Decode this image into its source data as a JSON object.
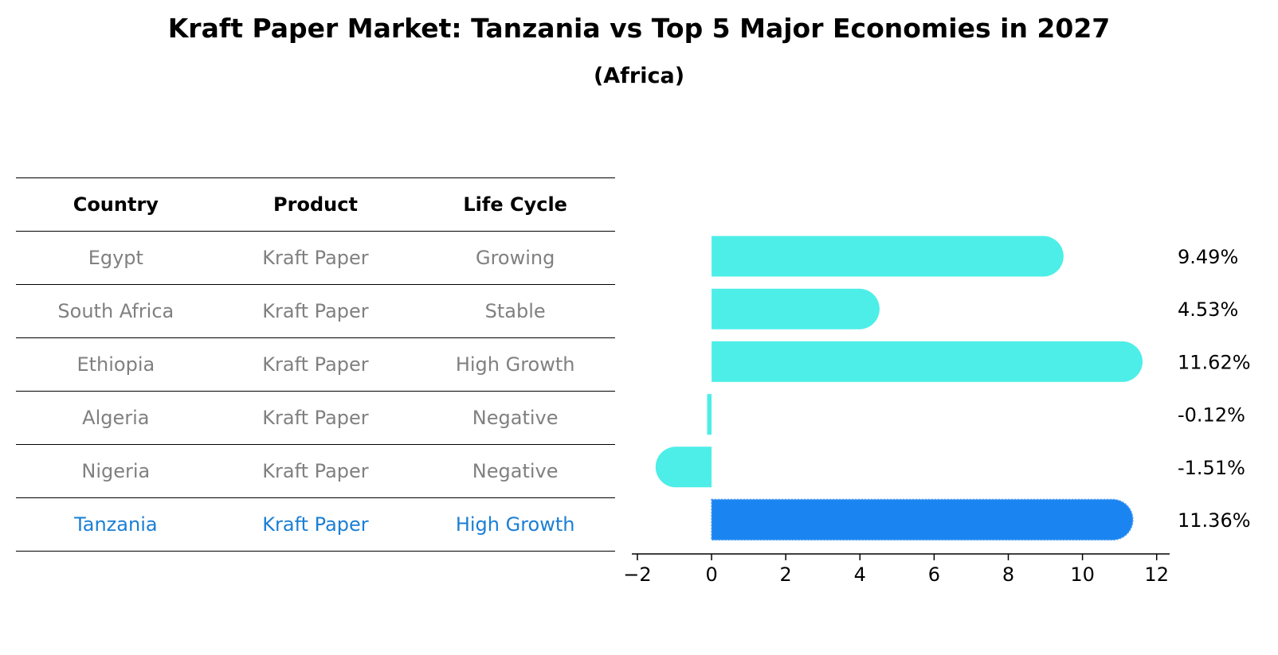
{
  "colors": {
    "bar": "#4deee8",
    "highlight_bar": "#1a85f0",
    "highlight_text": "#1a7fd4",
    "muted_text": "#808080"
  },
  "table": {
    "headers": [
      "Country",
      "Product",
      "Life Cycle"
    ],
    "rows": [
      {
        "country": "Egypt",
        "product": "Kraft Paper",
        "life_cycle": "Growing"
      },
      {
        "country": "South Africa",
        "product": "Kraft Paper",
        "life_cycle": "Stable"
      },
      {
        "country": "Ethiopia",
        "product": "Kraft Paper",
        "life_cycle": "High Growth"
      },
      {
        "country": "Algeria",
        "product": "Kraft Paper",
        "life_cycle": "Negative"
      },
      {
        "country": "Nigeria",
        "product": "Kraft Paper",
        "life_cycle": "Negative"
      },
      {
        "country": "Tanzania",
        "product": "Kraft Paper",
        "life_cycle": "High Growth"
      }
    ]
  },
  "chart_data": {
    "type": "bar",
    "orientation": "horizontal",
    "title": "Kraft Paper Market: Tanzania vs Top 5 Major Economies in 2027",
    "subtitle": "(Africa)",
    "categories": [
      "Egypt",
      "South Africa",
      "Ethiopia",
      "Algeria",
      "Nigeria",
      "Tanzania"
    ],
    "values": [
      9.49,
      4.53,
      11.62,
      -0.12,
      -1.51,
      11.36
    ],
    "value_labels": [
      "9.49%",
      "4.53%",
      "11.62%",
      "-0.12%",
      "-1.51%",
      "11.36%"
    ],
    "highlight": "Tanzania",
    "xlim": [
      -2.15,
      12.35
    ],
    "xticks": [
      -2,
      0,
      2,
      4,
      6,
      8,
      10,
      12
    ],
    "xtick_labels": [
      "−2",
      "0",
      "2",
      "4",
      "6",
      "8",
      "10",
      "12"
    ],
    "xlabel": "",
    "ylabel": "",
    "grid": false
  }
}
